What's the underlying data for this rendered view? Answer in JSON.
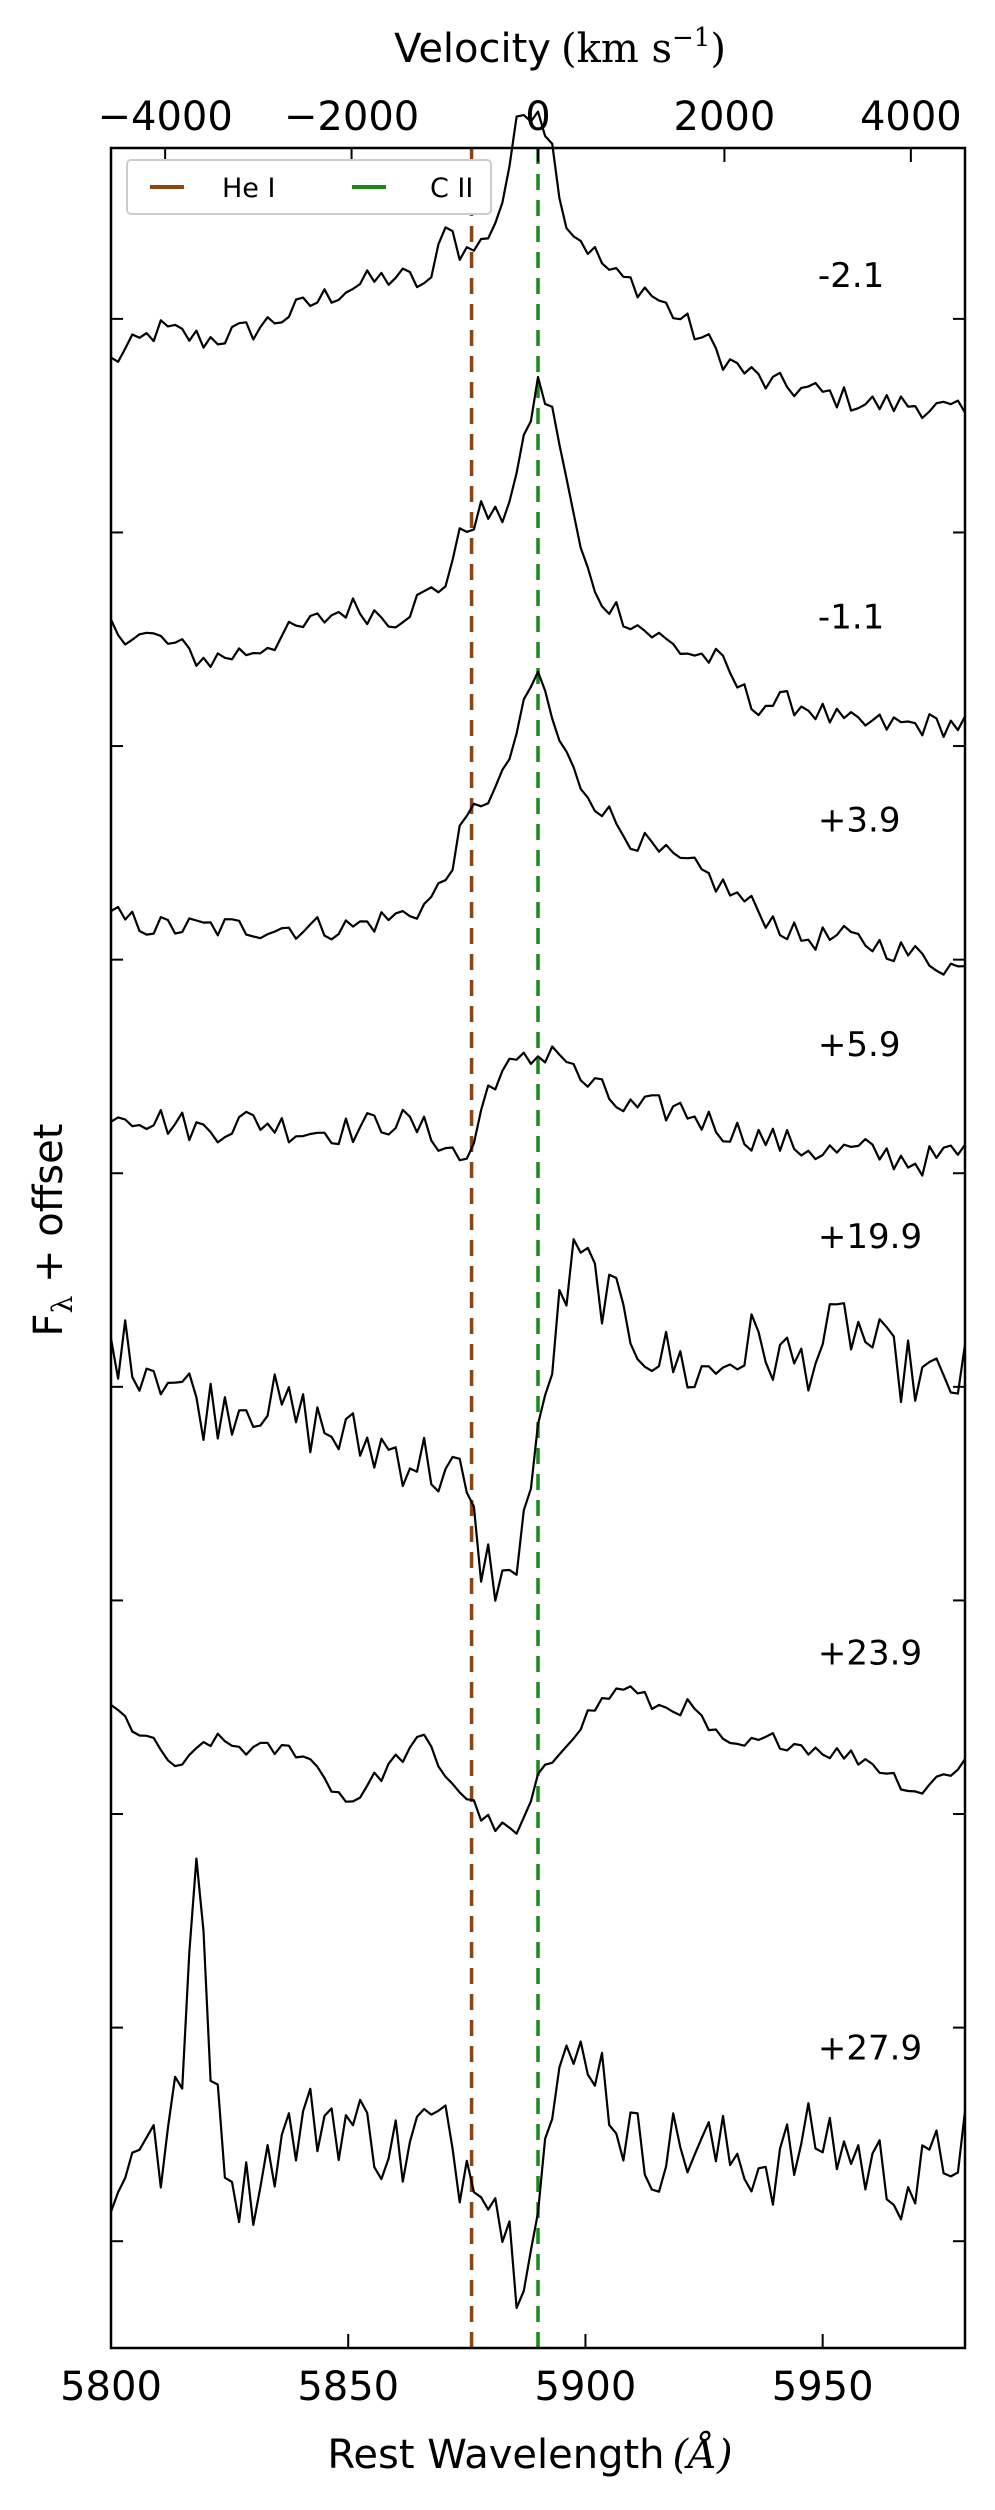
{
  "chart_data": {
    "type": "line",
    "xlabel": "Rest Wavelength",
    "xlabel_unit": "(Å)",
    "ylabel": "F",
    "ylabel_sub": "λ",
    "ylabel_suffix": " + offset",
    "top_axis_label": "Velocity",
    "top_axis_unit": "(km s",
    "top_axis_unit_exp": "−1",
    "top_axis_unit_end": ")",
    "xlim": [
      5800,
      5980
    ],
    "ylim": [
      -0.5,
      9.8
    ],
    "x_ticks": [
      5800,
      5850,
      5900,
      5950
    ],
    "x_tick_labels": [
      "5800",
      "5850",
      "5900",
      "5950"
    ],
    "top_ticks_velocity": [
      -4000,
      -2000,
      0,
      2000,
      4000
    ],
    "top_tick_labels": [
      "−4000",
      "−2000",
      "0",
      "2000",
      "4000"
    ],
    "reference_wavelength": 5890,
    "y_ticks": [
      0,
      1,
      2,
      3,
      4,
      5,
      6,
      7,
      8,
      9
    ],
    "grid": false,
    "legend_position": "top-left",
    "reference_lines": [
      {
        "name": "He I",
        "wavelength": 5876,
        "color": "#8b4513"
      },
      {
        "name": "C II",
        "wavelength": 5890,
        "color": "#1a8a1a"
      }
    ],
    "series": [
      {
        "name": "-2.1",
        "anchors": [
          [
            5800,
            8.8
          ],
          [
            5810,
            8.95
          ],
          [
            5820,
            8.9
          ],
          [
            5830,
            8.95
          ],
          [
            5840,
            9.05
          ],
          [
            5850,
            9.15
          ],
          [
            5860,
            9.2
          ],
          [
            5868,
            9.15
          ],
          [
            5870,
            9.5
          ],
          [
            5874,
            9.3
          ],
          [
            5878,
            9.35
          ],
          [
            5882,
            9.5
          ],
          [
            5886,
            9.95
          ],
          [
            5890,
            10.0
          ],
          [
            5893,
            9.8
          ],
          [
            5896,
            9.45
          ],
          [
            5900,
            9.35
          ],
          [
            5906,
            9.2
          ],
          [
            5912,
            9.15
          ],
          [
            5920,
            9.0
          ],
          [
            5930,
            8.8
          ],
          [
            5938,
            8.7
          ],
          [
            5950,
            8.65
          ],
          [
            5960,
            8.6
          ],
          [
            5970,
            8.6
          ],
          [
            5980,
            8.55
          ]
        ],
        "noise": 0.06
      },
      {
        "name": "-1.1",
        "anchors": [
          [
            5800,
            7.55
          ],
          [
            5810,
            7.5
          ],
          [
            5820,
            7.4
          ],
          [
            5830,
            7.45
          ],
          [
            5840,
            7.55
          ],
          [
            5850,
            7.65
          ],
          [
            5860,
            7.6
          ],
          [
            5866,
            7.7
          ],
          [
            5870,
            7.75
          ],
          [
            5874,
            8.0
          ],
          [
            5878,
            8.1
          ],
          [
            5882,
            8.05
          ],
          [
            5886,
            8.3
          ],
          [
            5890,
            8.7
          ],
          [
            5894,
            8.5
          ],
          [
            5898,
            8.0
          ],
          [
            5902,
            7.7
          ],
          [
            5906,
            7.65
          ],
          [
            5912,
            7.55
          ],
          [
            5920,
            7.45
          ],
          [
            5928,
            7.4
          ],
          [
            5935,
            7.2
          ],
          [
            5945,
            7.2
          ],
          [
            5955,
            7.1
          ],
          [
            5965,
            7.1
          ],
          [
            5980,
            7.1
          ]
        ],
        "noise": 0.06
      },
      {
        "name": "+3.9",
        "anchors": [
          [
            5800,
            6.2
          ],
          [
            5810,
            6.15
          ],
          [
            5820,
            6.15
          ],
          [
            5830,
            6.15
          ],
          [
            5840,
            6.15
          ],
          [
            5850,
            6.15
          ],
          [
            5860,
            6.2
          ],
          [
            5866,
            6.25
          ],
          [
            5870,
            6.35
          ],
          [
            5874,
            6.6
          ],
          [
            5878,
            6.75
          ],
          [
            5882,
            6.8
          ],
          [
            5886,
            7.1
          ],
          [
            5890,
            7.35
          ],
          [
            5894,
            7.05
          ],
          [
            5898,
            6.85
          ],
          [
            5902,
            6.75
          ],
          [
            5908,
            6.6
          ],
          [
            5915,
            6.5
          ],
          [
            5925,
            6.4
          ],
          [
            5935,
            6.25
          ],
          [
            5945,
            6.1
          ],
          [
            5955,
            6.1
          ],
          [
            5965,
            6.05
          ],
          [
            5980,
            5.95
          ]
        ],
        "noise": 0.06
      },
      {
        "name": "+5.9",
        "anchors": [
          [
            5800,
            5.3
          ],
          [
            5810,
            5.25
          ],
          [
            5820,
            5.2
          ],
          [
            5830,
            5.25
          ],
          [
            5840,
            5.2
          ],
          [
            5850,
            5.2
          ],
          [
            5860,
            5.25
          ],
          [
            5866,
            5.2
          ],
          [
            5870,
            5.15
          ],
          [
            5874,
            5.05
          ],
          [
            5876,
            5.1
          ],
          [
            5880,
            5.45
          ],
          [
            5886,
            5.5
          ],
          [
            5890,
            5.55
          ],
          [
            5894,
            5.6
          ],
          [
            5898,
            5.45
          ],
          [
            5902,
            5.4
          ],
          [
            5908,
            5.3
          ],
          [
            5920,
            5.3
          ],
          [
            5930,
            5.2
          ],
          [
            5940,
            5.15
          ],
          [
            5950,
            5.1
          ],
          [
            5960,
            5.1
          ],
          [
            5970,
            5.05
          ],
          [
            5980,
            5.1
          ]
        ],
        "noise": 0.07
      },
      {
        "name": "+19.9",
        "anchors": [
          [
            5800,
            4.2
          ],
          [
            5810,
            4.1
          ],
          [
            5820,
            3.9
          ],
          [
            5830,
            3.95
          ],
          [
            5840,
            3.85
          ],
          [
            5850,
            3.75
          ],
          [
            5860,
            3.7
          ],
          [
            5866,
            3.65
          ],
          [
            5870,
            3.6
          ],
          [
            5874,
            3.55
          ],
          [
            5878,
            3.2
          ],
          [
            5882,
            3.1
          ],
          [
            5884,
            3.05
          ],
          [
            5886,
            3.3
          ],
          [
            5890,
            3.7
          ],
          [
            5894,
            4.3
          ],
          [
            5898,
            4.6
          ],
          [
            5902,
            4.5
          ],
          [
            5908,
            4.3
          ],
          [
            5915,
            4.15
          ],
          [
            5925,
            4.05
          ],
          [
            5935,
            4.2
          ],
          [
            5945,
            4.1
          ],
          [
            5955,
            4.3
          ],
          [
            5965,
            4.1
          ],
          [
            5975,
            4.0
          ],
          [
            5980,
            4.05
          ]
        ],
        "noise": 0.16
      },
      {
        "name": "+23.9",
        "anchors": [
          [
            5800,
            2.5
          ],
          [
            5810,
            2.3
          ],
          [
            5815,
            2.2
          ],
          [
            5820,
            2.35
          ],
          [
            5830,
            2.3
          ],
          [
            5840,
            2.3
          ],
          [
            5850,
            2.05
          ],
          [
            5860,
            2.25
          ],
          [
            5866,
            2.35
          ],
          [
            5870,
            2.2
          ],
          [
            5876,
            2.05
          ],
          [
            5880,
            1.95
          ],
          [
            5886,
            1.9
          ],
          [
            5890,
            2.15
          ],
          [
            5896,
            2.35
          ],
          [
            5902,
            2.5
          ],
          [
            5908,
            2.6
          ],
          [
            5915,
            2.5
          ],
          [
            5922,
            2.5
          ],
          [
            5930,
            2.3
          ],
          [
            5940,
            2.35
          ],
          [
            5950,
            2.3
          ],
          [
            5960,
            2.25
          ],
          [
            5970,
            2.1
          ],
          [
            5980,
            2.25
          ]
        ],
        "noise": 0.04
      },
      {
        "name": "+27.9",
        "anchors": [
          [
            5800,
            0.1
          ],
          [
            5805,
            0.55
          ],
          [
            5810,
            0.35
          ],
          [
            5815,
            0.7
          ],
          [
            5818,
            1.95
          ],
          [
            5822,
            0.6
          ],
          [
            5828,
            0.2
          ],
          [
            5835,
            0.45
          ],
          [
            5845,
            0.6
          ],
          [
            5855,
            0.5
          ],
          [
            5862,
            0.4
          ],
          [
            5866,
            0.55
          ],
          [
            5870,
            0.5
          ],
          [
            5874,
            0.35
          ],
          [
            5878,
            0.4
          ],
          [
            5882,
            0.15
          ],
          [
            5886,
            -0.15
          ],
          [
            5890,
            0.3
          ],
          [
            5894,
            0.7
          ],
          [
            5898,
            0.85
          ],
          [
            5902,
            0.9
          ],
          [
            5906,
            0.6
          ],
          [
            5912,
            0.4
          ],
          [
            5920,
            0.45
          ],
          [
            5930,
            0.4
          ],
          [
            5940,
            0.35
          ],
          [
            5950,
            0.5
          ],
          [
            5960,
            0.35
          ],
          [
            5970,
            0.25
          ],
          [
            5980,
            0.5
          ]
        ],
        "noise": 0.2
      }
    ]
  }
}
